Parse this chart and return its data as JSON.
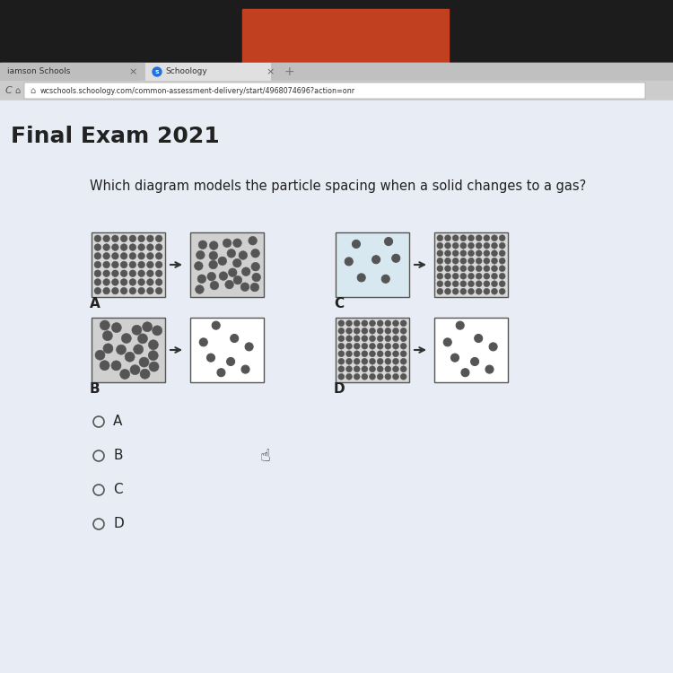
{
  "title": "Final Exam 2021",
  "question": "Which diagram models the particle spacing when a solid changes to a gas?",
  "url_text": "wcschools.schoology.com/common-assessment-delivery/start/4968074696?action=onr",
  "bg_dark": "#1c1c1c",
  "bg_orange": "#c04020",
  "bg_browser": "#cccccc",
  "bg_tab_inactive": "#b8b8b8",
  "bg_tab_active": "#e8e8e8",
  "bg_content": "#e8edf5",
  "bg_white": "#f5f5f5",
  "box_ec": "#555555",
  "box_fill_tight": "#d8d8d8",
  "box_fill_medium": "#d0d0d0",
  "box_fill_sparse_c": "#d8e8f0",
  "box_fill_white": "#ffffff",
  "particle_fc_tight": "#c8c8c8",
  "particle_ec_tight": "#555555",
  "particle_fc_medium": "#c0c0c0",
  "particle_ec_medium": "#555555",
  "particle_fc_sparse": "#ffffff",
  "particle_ec_sparse": "#555555",
  "arrow_color": "#333333",
  "text_dark": "#222222",
  "text_gray": "#555555",
  "radio_color": "#555555"
}
